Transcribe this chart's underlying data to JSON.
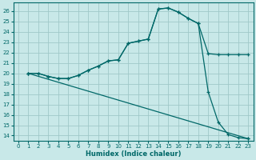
{
  "xlabel": "Humidex (Indice chaleur)",
  "bg_color": "#c8e8e8",
  "grid_color": "#a0c8c8",
  "line_color": "#006868",
  "xlim": [
    -0.5,
    23.5
  ],
  "ylim": [
    13.5,
    26.8
  ],
  "xticks": [
    0,
    1,
    2,
    3,
    4,
    5,
    6,
    7,
    8,
    9,
    10,
    11,
    12,
    13,
    14,
    15,
    16,
    17,
    18,
    19,
    20,
    21,
    22,
    23
  ],
  "yticks": [
    14,
    15,
    16,
    17,
    18,
    19,
    20,
    21,
    22,
    23,
    24,
    25,
    26
  ],
  "series": [
    {
      "x": [
        1,
        2,
        3,
        4,
        5,
        6,
        7,
        8,
        9,
        10,
        11,
        12,
        13,
        14,
        15,
        16,
        17,
        18,
        19,
        20,
        21,
        22,
        23
      ],
      "y": [
        20.0,
        20.0,
        19.7,
        19.5,
        19.5,
        19.8,
        20.3,
        20.7,
        21.2,
        21.3,
        22.9,
        23.1,
        23.3,
        26.2,
        26.3,
        25.9,
        25.3,
        24.8,
        21.9,
        21.8,
        21.8,
        21.8,
        21.8
      ]
    },
    {
      "x": [
        1,
        2,
        3,
        4,
        5,
        6,
        7,
        8,
        9,
        10,
        11,
        12,
        13,
        14,
        15,
        16,
        17,
        18,
        19,
        20,
        21,
        22,
        23
      ],
      "y": [
        20.0,
        20.0,
        19.7,
        19.5,
        19.5,
        19.8,
        20.3,
        20.7,
        21.2,
        21.3,
        22.9,
        23.1,
        23.3,
        26.2,
        26.3,
        25.9,
        25.3,
        24.8,
        18.2,
        15.3,
        14.1,
        13.8,
        13.7
      ]
    },
    {
      "x": [
        1,
        23
      ],
      "y": [
        20.0,
        13.7
      ]
    }
  ]
}
